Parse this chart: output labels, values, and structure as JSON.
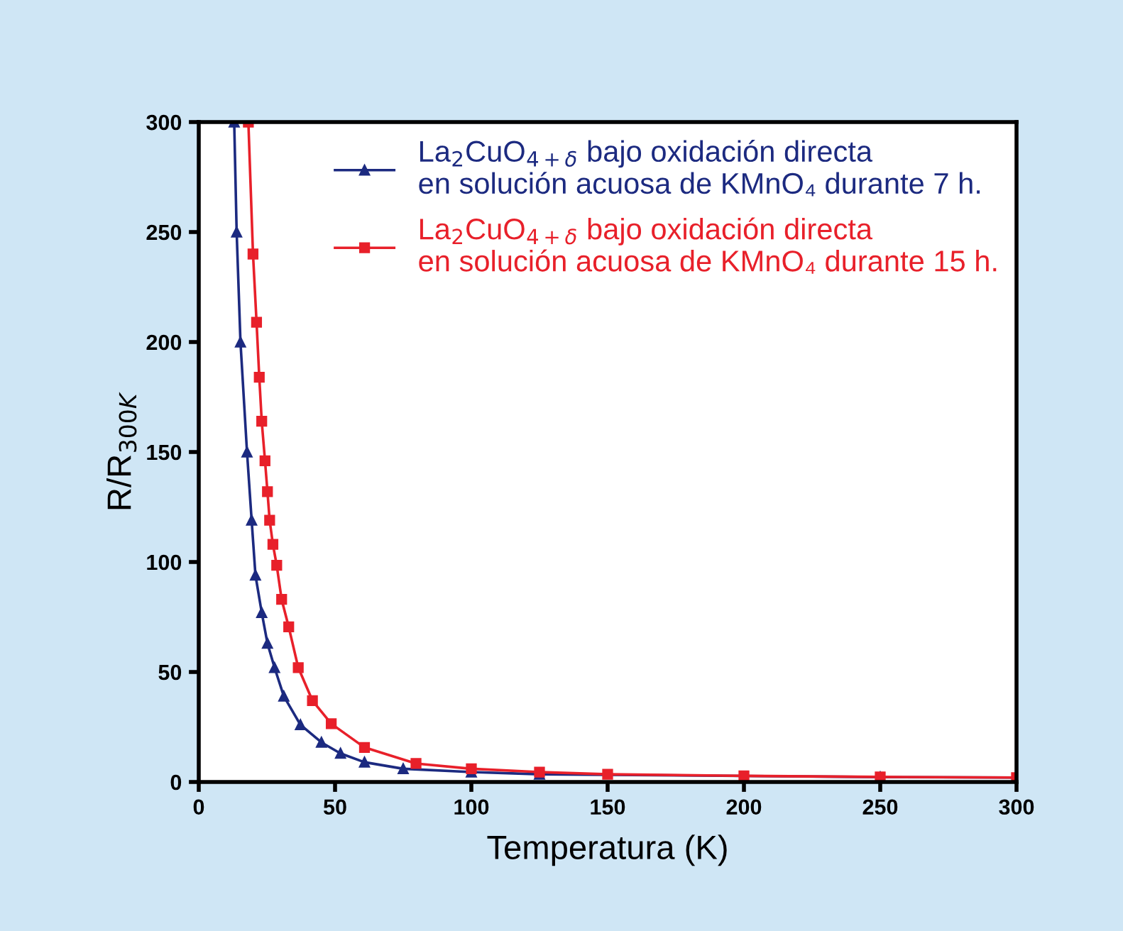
{
  "chart_data": {
    "type": "line",
    "xlabel": "Temperatura (K)",
    "ylabel": "R/R$_{300K}$",
    "xlim": [
      0,
      300
    ],
    "ylim": [
      0,
      300
    ],
    "xticks": [
      0,
      50,
      100,
      150,
      200,
      250,
      300
    ],
    "yticks": [
      0,
      50,
      100,
      150,
      200,
      250,
      300
    ],
    "grid": false,
    "legend": "top right",
    "line_style": "solid",
    "series": [
      {
        "name": "La$_{2}$CuO$_{4+δ}$ bajo oxidación directa\nen solución acuosa de KMnO₄ durante 7 h.",
        "color": "#1c2a80",
        "marker": "triangle",
        "x": [
          13,
          13.9,
          15.3,
          17.7,
          19.4,
          20.8,
          23.1,
          25.2,
          27.8,
          31.2,
          37.3,
          45,
          52,
          60.8,
          75,
          100,
          125,
          250,
          300
        ],
        "values": [
          300,
          250,
          200,
          150,
          119,
          94,
          77,
          63,
          52,
          39,
          26,
          18,
          13,
          9,
          6,
          4.5,
          3.5,
          2.2,
          2
        ]
      },
      {
        "name": "La$_{2}$CuO$_{4+δ}$ bajo oxidación directa\nen solución acuosa de KMnO₄ durante 15 h.",
        "color": "#e8202a",
        "marker": "square",
        "x": [
          18.2,
          19.9,
          21.2,
          22.2,
          23.1,
          24.3,
          25.2,
          26,
          27.2,
          28.6,
          30.4,
          33,
          36.5,
          41.7,
          48.6,
          60.8,
          79.7,
          100,
          125,
          150,
          200,
          250,
          300
        ],
        "values": [
          300,
          240,
          209,
          184,
          164,
          146,
          132,
          119,
          108,
          98.5,
          83,
          70.5,
          52,
          37,
          26.5,
          15.7,
          8.4,
          6,
          4.5,
          3.5,
          2.8,
          2.3,
          2
        ]
      }
    ]
  }
}
